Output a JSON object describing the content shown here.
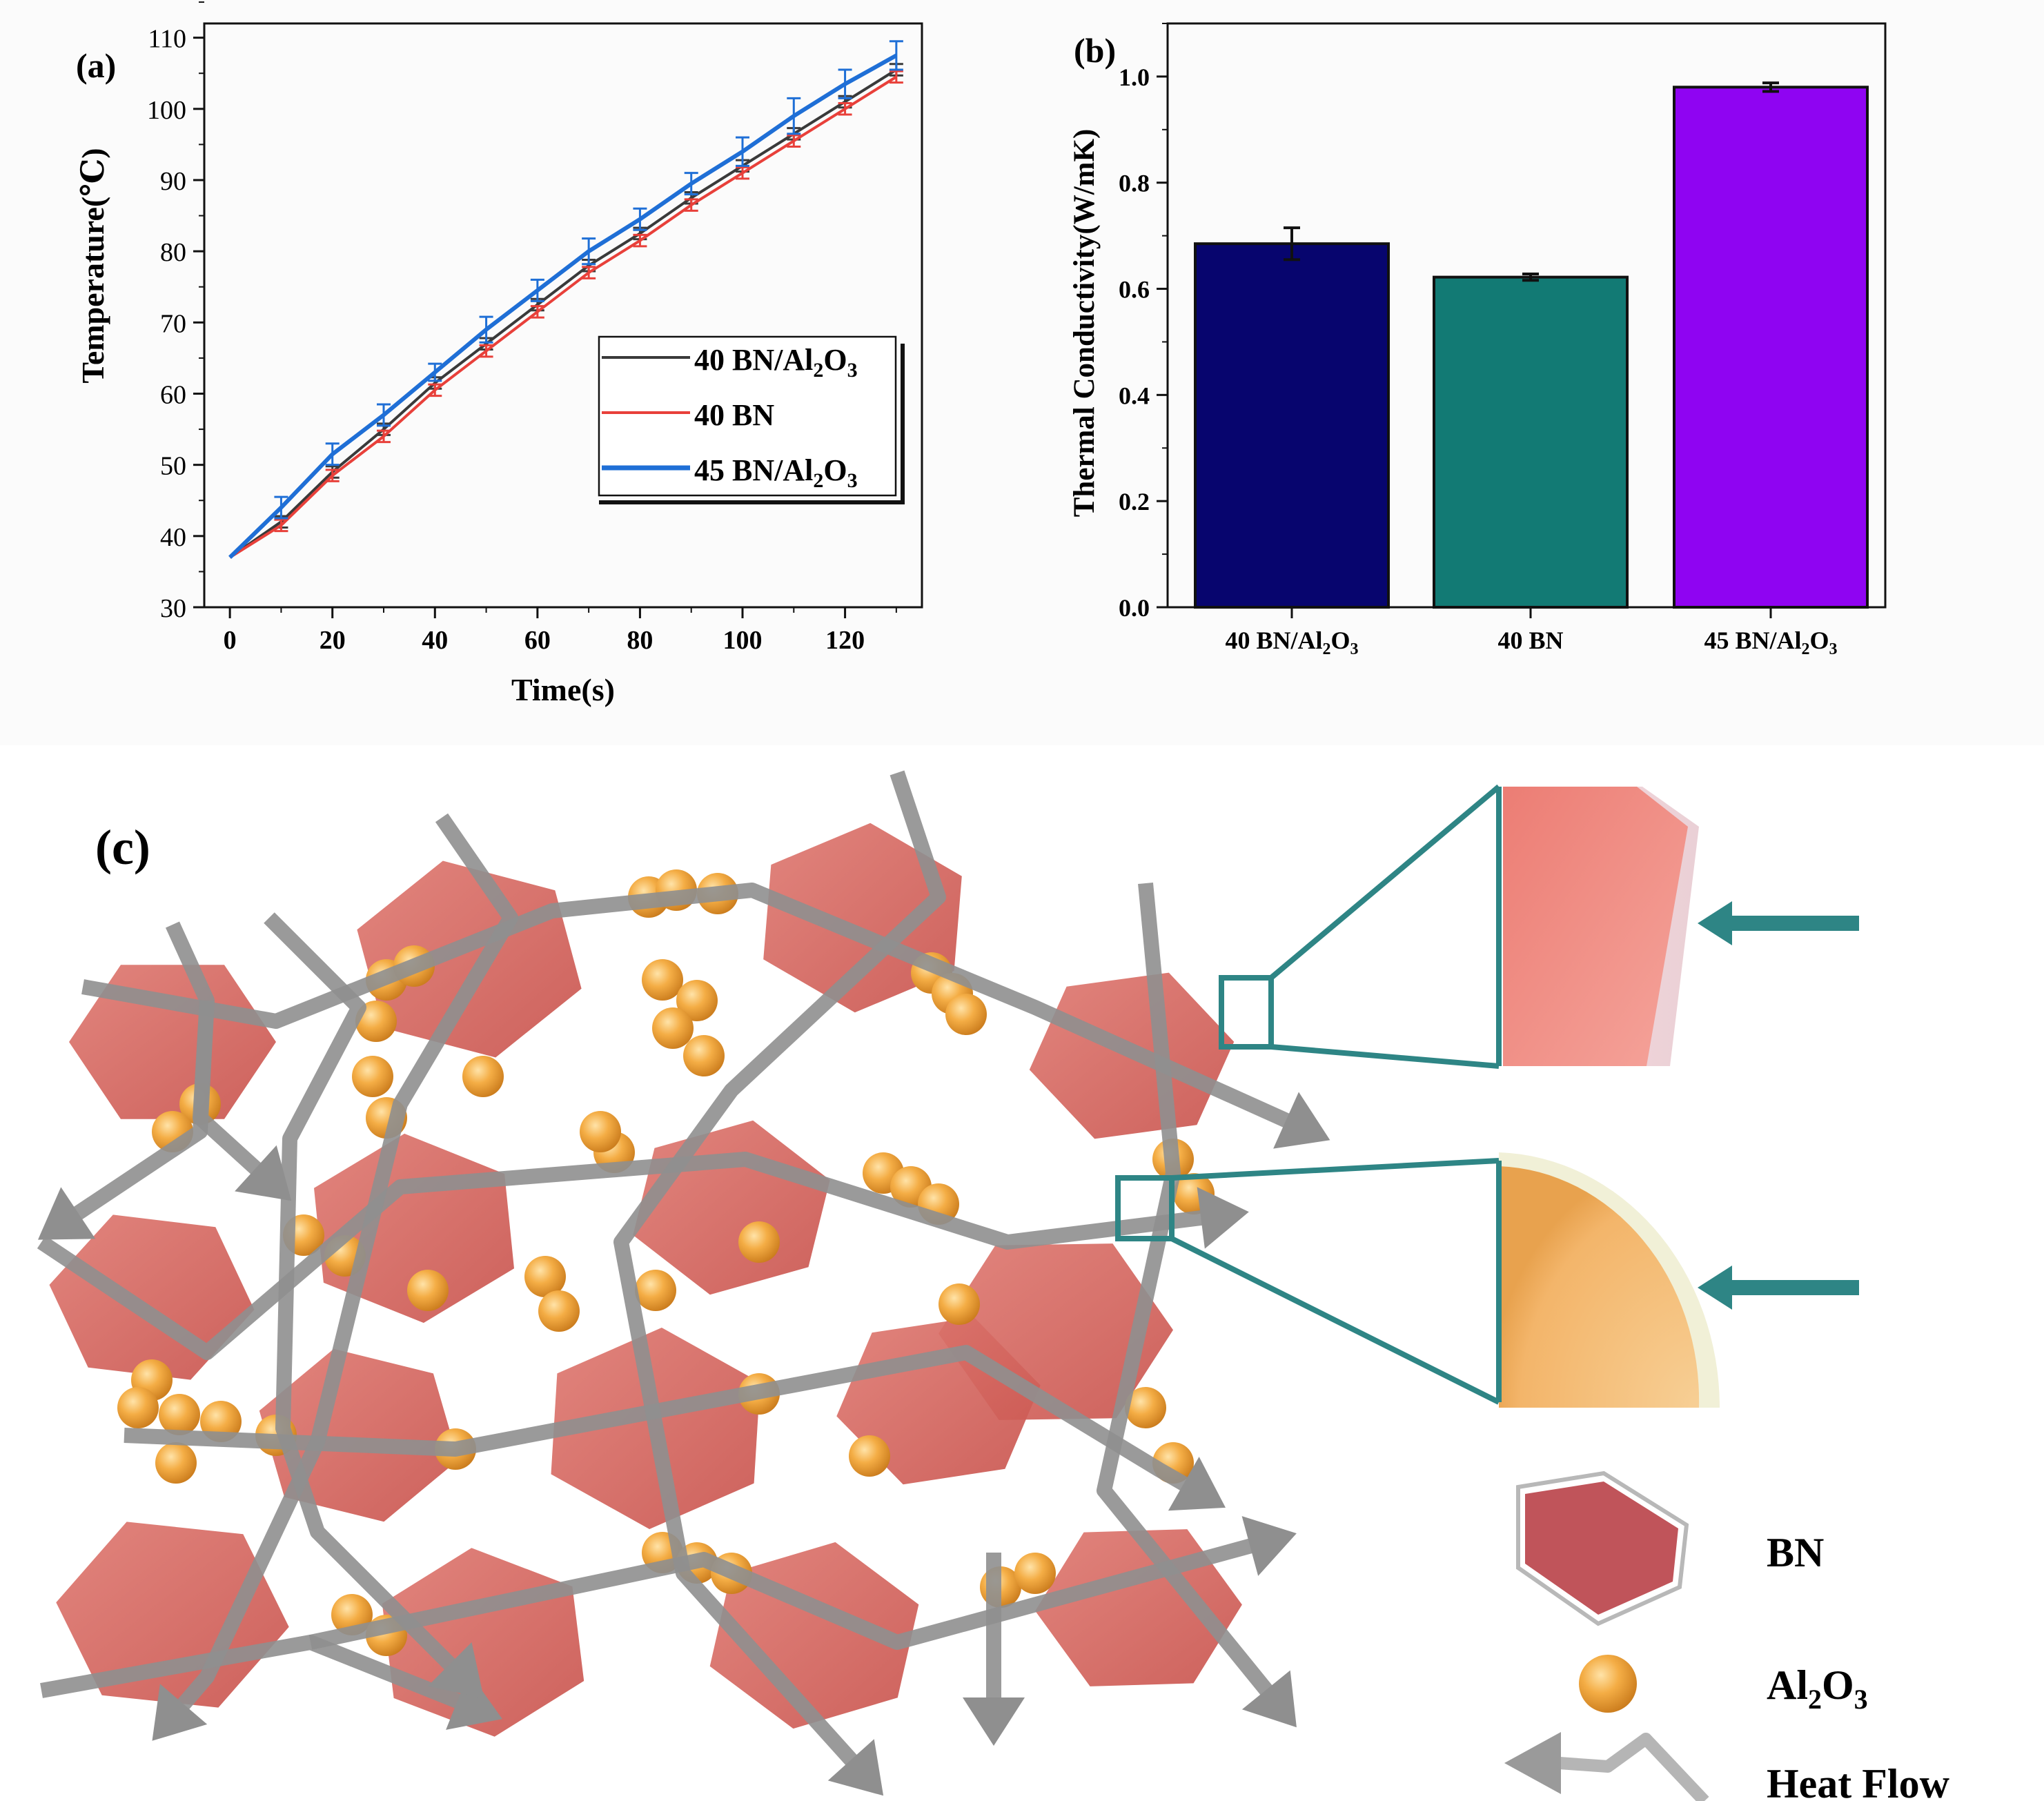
{
  "panel_labels": {
    "a": "(a)",
    "b": "(b)",
    "c": "(c)"
  },
  "colors": {
    "black_series": "#3a3a3a",
    "red_series": "#e8403a",
    "blue_series": "#1f6fd6",
    "bar_navy": "#07056e",
    "bar_teal": "#127a74",
    "bar_purple": "#8f04f2",
    "bn_plate": "#d4655f",
    "al2o3_sphere": "#f0a43a",
    "heat_flow": "#8f8f8f",
    "zoom_frame": "#2e8585"
  },
  "chart_data": [
    {
      "id": "a",
      "type": "line",
      "xlabel": "Time(s)",
      "ylabel": "Temperature(℃)",
      "xlim": [
        -5,
        135
      ],
      "ylim": [
        30,
        112
      ],
      "xticks": [
        0,
        20,
        40,
        60,
        80,
        100,
        120
      ],
      "yticks": [
        30,
        40,
        50,
        60,
        70,
        80,
        90,
        100,
        110
      ],
      "x": [
        0,
        10,
        20,
        30,
        40,
        50,
        60,
        70,
        80,
        90,
        100,
        110,
        120,
        130
      ],
      "series": [
        {
          "name": "40 BN/Al2O3",
          "label_main": "40 BN/Al",
          "sub1": "2",
          "mid": "O",
          "sub2": "3",
          "color": "#3a3a3a",
          "values": [
            37,
            42,
            49,
            55,
            61.5,
            67,
            72.5,
            78,
            82.5,
            87.5,
            92,
            96.5,
            101,
            105.5
          ],
          "errors": [
            0,
            0.8,
            0.8,
            0.8,
            0.8,
            0.8,
            0.8,
            0.8,
            0.8,
            0.8,
            0.8,
            0.8,
            0.8,
            0.8
          ]
        },
        {
          "name": "40 BN",
          "label_main": "40 BN",
          "sub1": "",
          "mid": "",
          "sub2": "",
          "color": "#e8403a",
          "values": [
            37,
            41.5,
            48.5,
            54,
            60.5,
            66,
            71.5,
            77,
            81.5,
            86.5,
            91,
            95.5,
            100,
            104.5
          ],
          "errors": [
            0,
            0.8,
            0.8,
            0.8,
            0.8,
            0.8,
            0.8,
            0.8,
            0.8,
            0.8,
            0.8,
            0.8,
            0.8,
            0.8
          ]
        },
        {
          "name": "45 BN/Al2O3",
          "label_main": "45 BN/Al",
          "sub1": "2",
          "mid": "O",
          "sub2": "3",
          "color": "#1f6fd6",
          "values": [
            37,
            44,
            51.5,
            57,
            63,
            69,
            74.5,
            80,
            84.5,
            89.5,
            94,
            99,
            103.5,
            107.5
          ],
          "errors": [
            0,
            1.5,
            1.5,
            1.5,
            1.2,
            1.8,
            1.5,
            1.8,
            1.5,
            1.5,
            2,
            2.5,
            2,
            2
          ]
        }
      ]
    },
    {
      "id": "b",
      "type": "bar",
      "ylabel": "Thermal Conductivity(W/mK)",
      "ylim": [
        0,
        1.1
      ],
      "yticks": [
        "0.0",
        "0.2",
        "0.4",
        "0.6",
        "0.8",
        "1.0"
      ],
      "categories": [
        {
          "name": "40 BN/Al2O3",
          "main": "40 BN/Al",
          "sub1": "2",
          "mid": "O",
          "sub2": "3"
        },
        {
          "name": "40 BN",
          "main": "40 BN",
          "sub1": "",
          "mid": "",
          "sub2": ""
        },
        {
          "name": "45 BN/Al2O3",
          "main": "45 BN/Al",
          "sub1": "2",
          "mid": "O",
          "sub2": "3"
        }
      ],
      "values": [
        0.685,
        0.622,
        0.98
      ],
      "errors": [
        0.03,
        0.006,
        0.008
      ],
      "bar_colors": [
        "#07056e",
        "#127a74",
        "#8f04f2"
      ]
    }
  ],
  "schematic": {
    "legend": {
      "bn": "BN",
      "al2o3": {
        "main": "Al",
        "sub1": "2",
        "mid": "O",
        "sub2": "3"
      },
      "heat_flow": "Heat Flow"
    }
  }
}
